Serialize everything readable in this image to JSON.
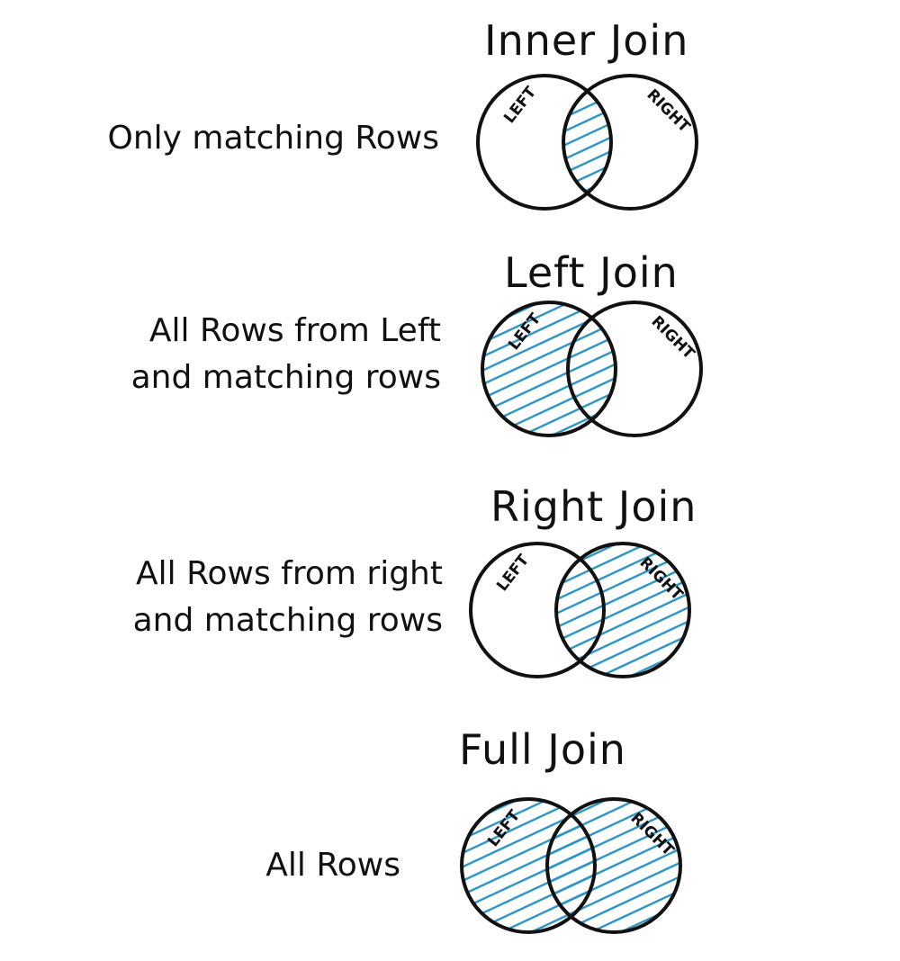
{
  "diagrams": [
    {
      "title": "Inner Join",
      "description_lines": [
        [
          "",
          "Only ",
          "matching",
          " Rows"
        ]
      ],
      "shade": "intersection",
      "left_label": "LEFT",
      "right_label": "RIGHT"
    },
    {
      "title": "Left Join",
      "description_lines": [
        [
          "",
          "All",
          " Rows from Left",
          ""
        ],
        [
          "",
          "and ",
          "matching",
          " rows"
        ]
      ],
      "shade": "left",
      "left_label": "LEFT",
      "right_label": "RIGHT"
    },
    {
      "title": "Right Join",
      "description_lines": [
        [
          "",
          "All",
          " Rows from right",
          ""
        ],
        [
          "",
          "and ",
          "matching",
          " rows"
        ]
      ],
      "shade": "right",
      "left_label": "LEFT",
      "right_label": "RIGHT"
    },
    {
      "title": "Full Join",
      "description_lines": [
        [
          "",
          "All",
          " Rows",
          ""
        ]
      ],
      "shade": "full",
      "left_label": "LEFT",
      "right_label": "RIGHT"
    }
  ],
  "colors": {
    "hatch": "#2a93bf",
    "highlight": "#cfe6f2",
    "ink": "#111111"
  }
}
